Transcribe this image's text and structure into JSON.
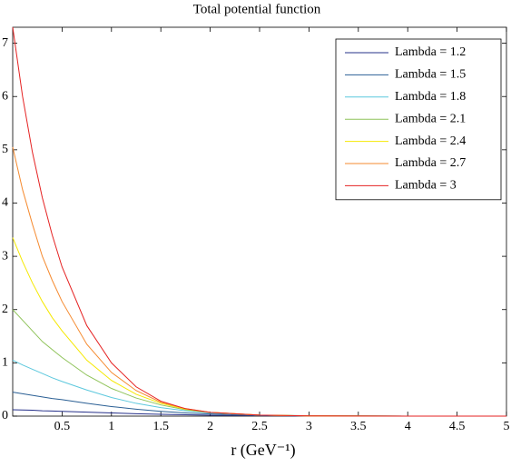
{
  "chart_data": {
    "type": "line",
    "title": "Total potential function",
    "x_label": "r (GeV⁻¹)",
    "x": [
      0,
      0.1,
      0.2,
      0.3,
      0.4,
      0.5,
      0.75,
      1,
      1.25,
      1.5,
      1.75,
      2,
      2.5,
      3,
      4,
      5
    ],
    "series": [
      {
        "name": "Lambda = 1.2",
        "color": "#26308a",
        "values": [
          0.12,
          0.115,
          0.11,
          0.1,
          0.095,
          0.09,
          0.075,
          0.06,
          0.045,
          0.035,
          0.025,
          0.018,
          0.008,
          0.003,
          0.001,
          0
        ]
      },
      {
        "name": "Lambda = 1.5",
        "color": "#2a5f94",
        "values": [
          0.45,
          0.42,
          0.39,
          0.36,
          0.33,
          0.31,
          0.24,
          0.18,
          0.13,
          0.09,
          0.06,
          0.04,
          0.015,
          0.006,
          0.001,
          0
        ]
      },
      {
        "name": "Lambda = 1.8",
        "color": "#5cc8dd",
        "values": [
          1.05,
          0.96,
          0.88,
          0.8,
          0.72,
          0.65,
          0.49,
          0.35,
          0.24,
          0.16,
          0.1,
          0.06,
          0.02,
          0.007,
          0.001,
          0
        ]
      },
      {
        "name": "Lambda = 2.1",
        "color": "#8fc35a",
        "values": [
          2.0,
          1.8,
          1.6,
          1.4,
          1.25,
          1.1,
          0.77,
          0.52,
          0.34,
          0.21,
          0.12,
          0.07,
          0.02,
          0.006,
          0,
          0
        ]
      },
      {
        "name": "Lambda = 2.4",
        "color": "#f5e800",
        "values": [
          3.35,
          2.9,
          2.5,
          2.15,
          1.85,
          1.6,
          1.05,
          0.67,
          0.41,
          0.24,
          0.13,
          0.07,
          0.02,
          0.005,
          0,
          0
        ]
      },
      {
        "name": "Lambda = 2.7",
        "color": "#f58a2f",
        "values": [
          5.05,
          4.25,
          3.6,
          3.0,
          2.55,
          2.15,
          1.35,
          0.82,
          0.48,
          0.26,
          0.14,
          0.07,
          0.02,
          0.005,
          0,
          0
        ]
      },
      {
        "name": "Lambda = 3",
        "color": "#e52222",
        "values": [
          7.3,
          6.0,
          4.95,
          4.1,
          3.4,
          2.8,
          1.7,
          1.0,
          0.55,
          0.28,
          0.14,
          0.07,
          0.02,
          0.005,
          0,
          0
        ]
      }
    ],
    "xlim": [
      0,
      5
    ],
    "xticks": [
      0.5,
      1,
      1.5,
      2,
      2.5,
      3,
      3.5,
      4,
      4.5,
      5
    ],
    "ylim": [
      0,
      7.3
    ],
    "yticks": [
      0,
      1,
      2,
      3,
      4,
      5,
      6,
      7
    ],
    "legend": "upper right"
  }
}
